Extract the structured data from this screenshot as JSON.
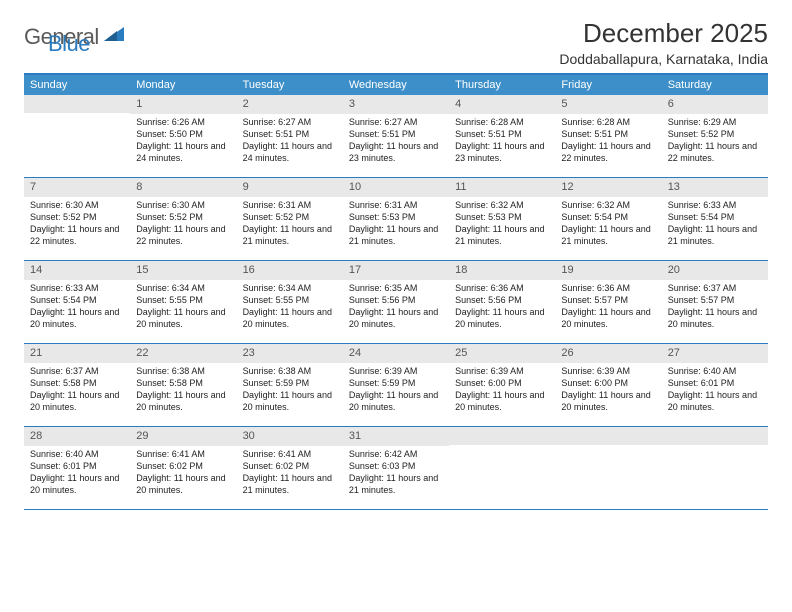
{
  "logo": {
    "text1": "General",
    "text2": "Blue"
  },
  "title": "December 2025",
  "location": "Doddaballapura, Karnataka, India",
  "colors": {
    "header_bar": "#3d8fc9",
    "border": "#2b7bbf",
    "daynum_bg": "#e8e8e8",
    "logo_gray": "#5a5a5a",
    "logo_blue": "#2b7bbf"
  },
  "weekdays": [
    "Sunday",
    "Monday",
    "Tuesday",
    "Wednesday",
    "Thursday",
    "Friday",
    "Saturday"
  ],
  "weeks": [
    [
      {
        "n": "",
        "sr": "",
        "ss": "",
        "dl": ""
      },
      {
        "n": "1",
        "sr": "Sunrise: 6:26 AM",
        "ss": "Sunset: 5:50 PM",
        "dl": "Daylight: 11 hours and 24 minutes."
      },
      {
        "n": "2",
        "sr": "Sunrise: 6:27 AM",
        "ss": "Sunset: 5:51 PM",
        "dl": "Daylight: 11 hours and 24 minutes."
      },
      {
        "n": "3",
        "sr": "Sunrise: 6:27 AM",
        "ss": "Sunset: 5:51 PM",
        "dl": "Daylight: 11 hours and 23 minutes."
      },
      {
        "n": "4",
        "sr": "Sunrise: 6:28 AM",
        "ss": "Sunset: 5:51 PM",
        "dl": "Daylight: 11 hours and 23 minutes."
      },
      {
        "n": "5",
        "sr": "Sunrise: 6:28 AM",
        "ss": "Sunset: 5:51 PM",
        "dl": "Daylight: 11 hours and 22 minutes."
      },
      {
        "n": "6",
        "sr": "Sunrise: 6:29 AM",
        "ss": "Sunset: 5:52 PM",
        "dl": "Daylight: 11 hours and 22 minutes."
      }
    ],
    [
      {
        "n": "7",
        "sr": "Sunrise: 6:30 AM",
        "ss": "Sunset: 5:52 PM",
        "dl": "Daylight: 11 hours and 22 minutes."
      },
      {
        "n": "8",
        "sr": "Sunrise: 6:30 AM",
        "ss": "Sunset: 5:52 PM",
        "dl": "Daylight: 11 hours and 22 minutes."
      },
      {
        "n": "9",
        "sr": "Sunrise: 6:31 AM",
        "ss": "Sunset: 5:52 PM",
        "dl": "Daylight: 11 hours and 21 minutes."
      },
      {
        "n": "10",
        "sr": "Sunrise: 6:31 AM",
        "ss": "Sunset: 5:53 PM",
        "dl": "Daylight: 11 hours and 21 minutes."
      },
      {
        "n": "11",
        "sr": "Sunrise: 6:32 AM",
        "ss": "Sunset: 5:53 PM",
        "dl": "Daylight: 11 hours and 21 minutes."
      },
      {
        "n": "12",
        "sr": "Sunrise: 6:32 AM",
        "ss": "Sunset: 5:54 PM",
        "dl": "Daylight: 11 hours and 21 minutes."
      },
      {
        "n": "13",
        "sr": "Sunrise: 6:33 AM",
        "ss": "Sunset: 5:54 PM",
        "dl": "Daylight: 11 hours and 21 minutes."
      }
    ],
    [
      {
        "n": "14",
        "sr": "Sunrise: 6:33 AM",
        "ss": "Sunset: 5:54 PM",
        "dl": "Daylight: 11 hours and 20 minutes."
      },
      {
        "n": "15",
        "sr": "Sunrise: 6:34 AM",
        "ss": "Sunset: 5:55 PM",
        "dl": "Daylight: 11 hours and 20 minutes."
      },
      {
        "n": "16",
        "sr": "Sunrise: 6:34 AM",
        "ss": "Sunset: 5:55 PM",
        "dl": "Daylight: 11 hours and 20 minutes."
      },
      {
        "n": "17",
        "sr": "Sunrise: 6:35 AM",
        "ss": "Sunset: 5:56 PM",
        "dl": "Daylight: 11 hours and 20 minutes."
      },
      {
        "n": "18",
        "sr": "Sunrise: 6:36 AM",
        "ss": "Sunset: 5:56 PM",
        "dl": "Daylight: 11 hours and 20 minutes."
      },
      {
        "n": "19",
        "sr": "Sunrise: 6:36 AM",
        "ss": "Sunset: 5:57 PM",
        "dl": "Daylight: 11 hours and 20 minutes."
      },
      {
        "n": "20",
        "sr": "Sunrise: 6:37 AM",
        "ss": "Sunset: 5:57 PM",
        "dl": "Daylight: 11 hours and 20 minutes."
      }
    ],
    [
      {
        "n": "21",
        "sr": "Sunrise: 6:37 AM",
        "ss": "Sunset: 5:58 PM",
        "dl": "Daylight: 11 hours and 20 minutes."
      },
      {
        "n": "22",
        "sr": "Sunrise: 6:38 AM",
        "ss": "Sunset: 5:58 PM",
        "dl": "Daylight: 11 hours and 20 minutes."
      },
      {
        "n": "23",
        "sr": "Sunrise: 6:38 AM",
        "ss": "Sunset: 5:59 PM",
        "dl": "Daylight: 11 hours and 20 minutes."
      },
      {
        "n": "24",
        "sr": "Sunrise: 6:39 AM",
        "ss": "Sunset: 5:59 PM",
        "dl": "Daylight: 11 hours and 20 minutes."
      },
      {
        "n": "25",
        "sr": "Sunrise: 6:39 AM",
        "ss": "Sunset: 6:00 PM",
        "dl": "Daylight: 11 hours and 20 minutes."
      },
      {
        "n": "26",
        "sr": "Sunrise: 6:39 AM",
        "ss": "Sunset: 6:00 PM",
        "dl": "Daylight: 11 hours and 20 minutes."
      },
      {
        "n": "27",
        "sr": "Sunrise: 6:40 AM",
        "ss": "Sunset: 6:01 PM",
        "dl": "Daylight: 11 hours and 20 minutes."
      }
    ],
    [
      {
        "n": "28",
        "sr": "Sunrise: 6:40 AM",
        "ss": "Sunset: 6:01 PM",
        "dl": "Daylight: 11 hours and 20 minutes."
      },
      {
        "n": "29",
        "sr": "Sunrise: 6:41 AM",
        "ss": "Sunset: 6:02 PM",
        "dl": "Daylight: 11 hours and 20 minutes."
      },
      {
        "n": "30",
        "sr": "Sunrise: 6:41 AM",
        "ss": "Sunset: 6:02 PM",
        "dl": "Daylight: 11 hours and 21 minutes."
      },
      {
        "n": "31",
        "sr": "Sunrise: 6:42 AM",
        "ss": "Sunset: 6:03 PM",
        "dl": "Daylight: 11 hours and 21 minutes."
      },
      {
        "n": "",
        "sr": "",
        "ss": "",
        "dl": ""
      },
      {
        "n": "",
        "sr": "",
        "ss": "",
        "dl": ""
      },
      {
        "n": "",
        "sr": "",
        "ss": "",
        "dl": ""
      }
    ]
  ]
}
